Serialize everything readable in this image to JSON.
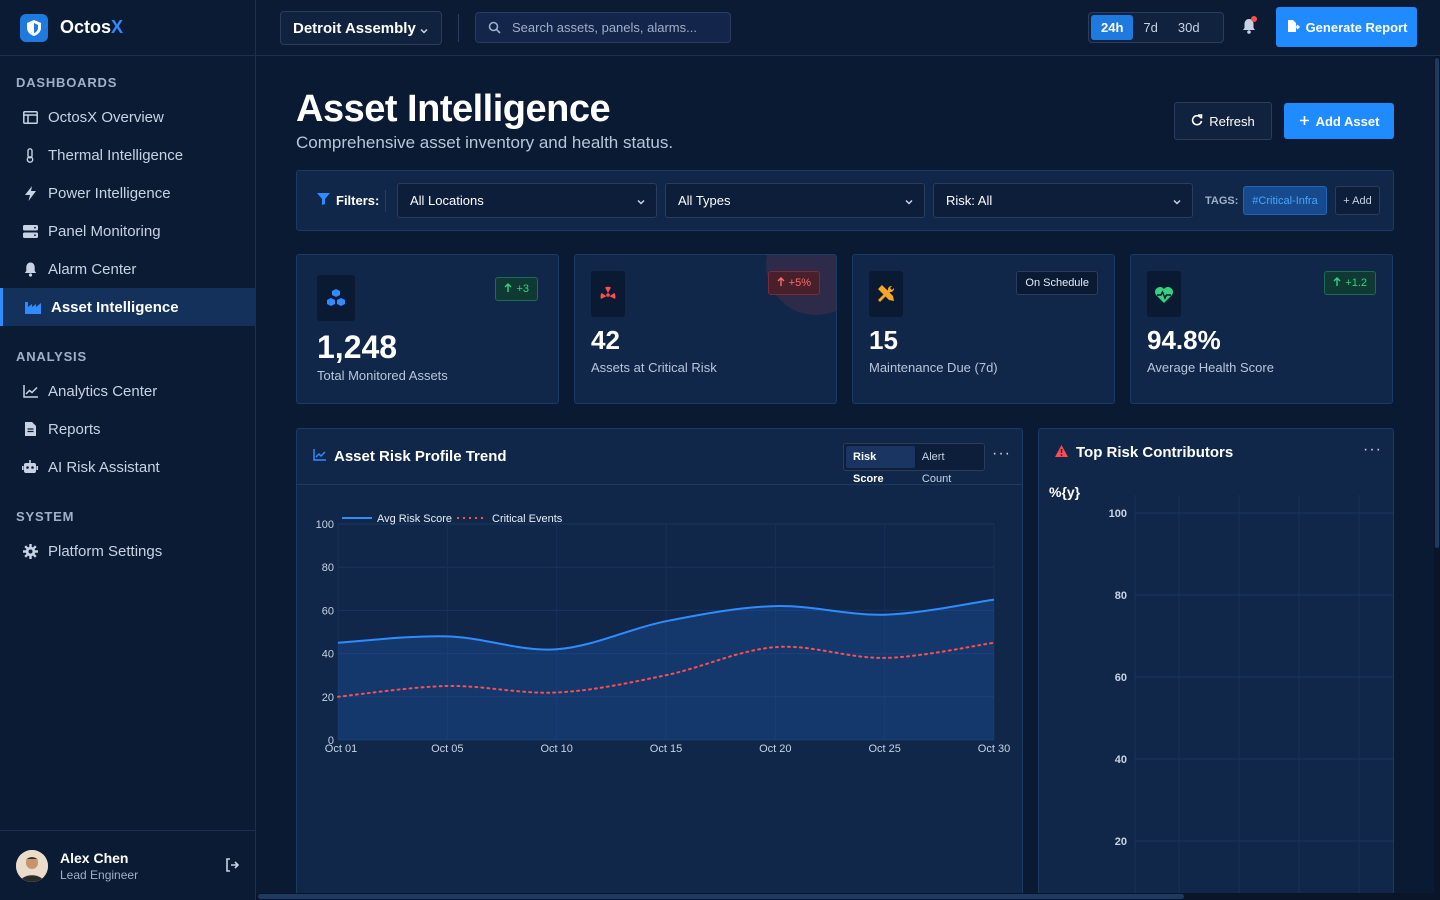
{
  "brand": {
    "name_main": "Octos",
    "name_accent": "X"
  },
  "sidebar": {
    "sections": [
      {
        "heading": "DASHBOARDS",
        "items": [
          {
            "label": "OctosX Overview",
            "icon": "layout-icon"
          },
          {
            "label": "Thermal Intelligence",
            "icon": "thermometer-icon"
          },
          {
            "label": "Power Intelligence",
            "icon": "bolt-icon"
          },
          {
            "label": "Panel Monitoring",
            "icon": "server-icon"
          },
          {
            "label": "Alarm Center",
            "icon": "bell-icon"
          },
          {
            "label": "Asset Intelligence",
            "icon": "industry-icon",
            "active": true
          }
        ]
      },
      {
        "heading": "ANALYSIS",
        "items": [
          {
            "label": "Analytics Center",
            "icon": "line-chart-icon"
          },
          {
            "label": "Reports",
            "icon": "file-icon"
          },
          {
            "label": "AI Risk Assistant",
            "icon": "robot-icon"
          }
        ]
      },
      {
        "heading": "SYSTEM",
        "items": [
          {
            "label": "Platform Settings",
            "icon": "gear-icon"
          }
        ]
      }
    ],
    "user": {
      "name": "Alex Chen",
      "role": "Lead Engineer"
    }
  },
  "topbar": {
    "site": "Detroit Assembly",
    "search_placeholder": "Search assets, panels, alarms...",
    "ranges": [
      "24h",
      "7d",
      "30d"
    ],
    "active_range": "24h",
    "generate_report": "Generate Report"
  },
  "page": {
    "title": "Asset Intelligence",
    "subtitle": "Comprehensive asset inventory and health status.",
    "refresh": "Refresh",
    "add_asset": "Add Asset"
  },
  "filters": {
    "label": "Filters:",
    "location": "All Locations",
    "type": "All Types",
    "risk": "Risk: All",
    "tags_label": "TAGS:",
    "tag": "#Critical-Infra",
    "add_tag": "+ Add"
  },
  "kpis": [
    {
      "value": "1,248",
      "label": "Total Monitored Assets",
      "badge": "+3",
      "badge_type": "green",
      "icon": "cubes-icon",
      "color": "#2f8cff"
    },
    {
      "value": "42",
      "label": "Assets at Critical Risk",
      "badge": "+5%",
      "badge_type": "red",
      "icon": "radiation-icon",
      "color": "#ff4d4d"
    },
    {
      "value": "15",
      "label": "Maintenance Due (7d)",
      "badge": "On Schedule",
      "badge_type": "neutral",
      "icon": "tools-icon",
      "color": "#f5a623"
    },
    {
      "value": "94.8%",
      "label": "Average Health Score",
      "badge": "+1.2",
      "badge_type": "green",
      "icon": "heart-pulse-icon",
      "color": "#37d07f"
    }
  ],
  "trend_panel": {
    "title": "Asset Risk Profile Trend",
    "tabs": [
      "Risk Score",
      "Alert Count"
    ],
    "active_tab": "Risk Score"
  },
  "contributors_panel": {
    "title": "Top Risk Contributors",
    "placeholder_label": "%{y}"
  },
  "chart_data": [
    {
      "type": "line",
      "x": [
        "Oct 01",
        "Oct 05",
        "Oct 10",
        "Oct 15",
        "Oct 20",
        "Oct 25",
        "Oct 30"
      ],
      "series": [
        {
          "name": "Avg Risk Score",
          "values": [
            45,
            48,
            42,
            55,
            62,
            58,
            65
          ],
          "color": "#2f8cff",
          "style": "solid-area"
        },
        {
          "name": "Critical Events",
          "values": [
            20,
            25,
            22,
            30,
            43,
            38,
            45
          ],
          "color": "#ff4d4d",
          "style": "dotted"
        }
      ],
      "yticks": [
        0,
        20,
        40,
        60,
        80,
        100
      ],
      "ylim": [
        0,
        100
      ],
      "legend": "top-left",
      "grid": true
    },
    {
      "type": "bar",
      "categories": [],
      "values": [],
      "yticks": [
        20,
        40,
        60,
        80,
        100
      ],
      "grid": true
    }
  ]
}
